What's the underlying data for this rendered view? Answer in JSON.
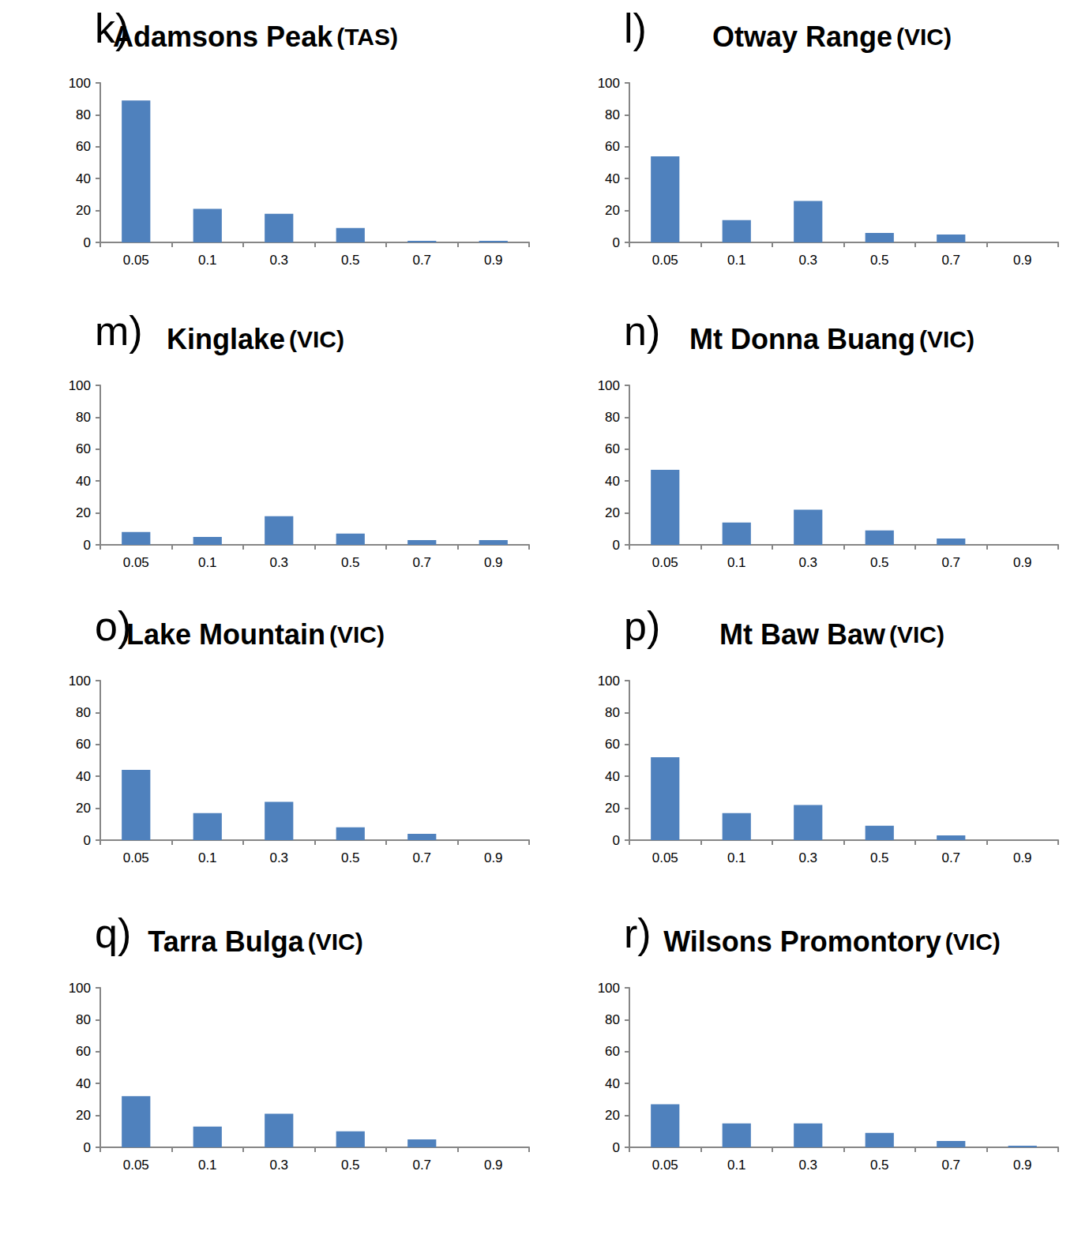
{
  "chart_data": [
    {
      "type": "bar",
      "annotations": [
        "k)"
      ],
      "title": "Adamsons Peak (TAS)",
      "categories": [
        "0.05",
        "0.1",
        "0.3",
        "0.5",
        "0.7",
        "0.9"
      ],
      "values": [
        89,
        21,
        18,
        9,
        1,
        1
      ],
      "color": "#4f81bd",
      "ylim": [
        0,
        100
      ],
      "yticks": [
        0,
        20,
        40,
        60,
        80,
        100
      ],
      "grid": false
    },
    {
      "type": "bar",
      "annotations": [
        "l)"
      ],
      "title": "Otway Range (VIC)",
      "categories": [
        "0.05",
        "0.1",
        "0.3",
        "0.5",
        "0.7",
        "0.9"
      ],
      "values": [
        54,
        14,
        26,
        6,
        5,
        0
      ],
      "color": "#4f81bd",
      "ylim": [
        0,
        100
      ],
      "yticks": [
        0,
        20,
        40,
        60,
        80,
        100
      ],
      "grid": false
    },
    {
      "type": "bar",
      "annotations": [
        "m)"
      ],
      "title": "Kinglake (VIC)",
      "categories": [
        "0.05",
        "0.1",
        "0.3",
        "0.5",
        "0.7",
        "0.9"
      ],
      "values": [
        8,
        5,
        18,
        7,
        3,
        3
      ],
      "color": "#4f81bd",
      "ylim": [
        0,
        100
      ],
      "yticks": [
        0,
        20,
        40,
        60,
        80,
        100
      ],
      "grid": false
    },
    {
      "type": "bar",
      "annotations": [
        "n)"
      ],
      "title": "Mt Donna Buang (VIC)",
      "categories": [
        "0.05",
        "0.1",
        "0.3",
        "0.5",
        "0.7",
        "0.9"
      ],
      "values": [
        47,
        14,
        22,
        9,
        4,
        0
      ],
      "color": "#4f81bd",
      "ylim": [
        0,
        100
      ],
      "yticks": [
        0,
        20,
        40,
        60,
        80,
        100
      ],
      "grid": false
    },
    {
      "type": "bar",
      "annotations": [
        "o)"
      ],
      "title": "Lake Mountain (VIC)",
      "categories": [
        "0.05",
        "0.1",
        "0.3",
        "0.5",
        "0.7",
        "0.9"
      ],
      "values": [
        44,
        17,
        24,
        8,
        4,
        0
      ],
      "color": "#4f81bd",
      "ylim": [
        0,
        100
      ],
      "yticks": [
        0,
        20,
        40,
        60,
        80,
        100
      ],
      "grid": false
    },
    {
      "type": "bar",
      "annotations": [
        "p)"
      ],
      "title": "Mt Baw Baw (VIC)",
      "categories": [
        "0.05",
        "0.1",
        "0.3",
        "0.5",
        "0.7",
        "0.9"
      ],
      "values": [
        52,
        17,
        22,
        9,
        3,
        0
      ],
      "color": "#4f81bd",
      "ylim": [
        0,
        100
      ],
      "yticks": [
        0,
        20,
        40,
        60,
        80,
        100
      ],
      "grid": false
    },
    {
      "type": "bar",
      "annotations": [
        "q)"
      ],
      "title": "Tarra Bulga (VIC)",
      "categories": [
        "0.05",
        "0.1",
        "0.3",
        "0.5",
        "0.7",
        "0.9"
      ],
      "values": [
        32,
        13,
        21,
        10,
        5,
        0
      ],
      "color": "#4f81bd",
      "ylim": [
        0,
        100
      ],
      "yticks": [
        0,
        20,
        40,
        60,
        80,
        100
      ],
      "grid": false
    },
    {
      "type": "bar",
      "annotations": [
        "r)"
      ],
      "title": "Wilsons Promontory (VIC)",
      "categories": [
        "0.05",
        "0.1",
        "0.3",
        "0.5",
        "0.7",
        "0.9"
      ],
      "values": [
        27,
        15,
        15,
        9,
        4,
        1
      ],
      "color": "#4f81bd",
      "ylim": [
        0,
        100
      ],
      "yticks": [
        0,
        20,
        40,
        60,
        80,
        100
      ],
      "grid": false
    }
  ]
}
